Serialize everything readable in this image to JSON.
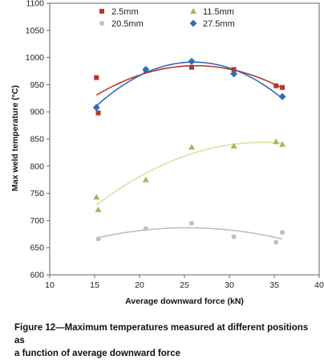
{
  "caption": {
    "line1": "Figure 12—Maximum temperatures measured at different positions as",
    "line2": "a function of average downward force"
  },
  "chart_data": {
    "type": "scatter",
    "title": "",
    "xlabel": "Average downward force (kN)",
    "ylabel": "Max weld temperature (°C)",
    "xlim": [
      10,
      40
    ],
    "ylim": [
      600,
      1100
    ],
    "xticks": [
      10,
      15,
      20,
      25,
      30,
      35,
      40
    ],
    "yticks": [
      600,
      650,
      700,
      750,
      800,
      850,
      900,
      950,
      1000,
      1050,
      1100
    ],
    "grid": false,
    "legend_position": "top",
    "trendlines": "quadratic",
    "series": [
      {
        "name": "2.5mm",
        "color": "#b03a2e",
        "marker": "square",
        "x": [
          15.2,
          15.4,
          20.7,
          25.8,
          30.5,
          35.2,
          35.9
        ],
        "y": [
          963,
          898,
          976,
          982,
          978,
          948,
          945
        ]
      },
      {
        "name": "11.5mm",
        "color": "#9bbb59",
        "marker": "triangle",
        "x": [
          15.2,
          15.4,
          20.7,
          25.8,
          30.5,
          35.2,
          35.9
        ],
        "y": [
          743,
          720,
          775,
          835,
          837,
          845,
          840
        ]
      },
      {
        "name": "20.5mm",
        "color": "#bfbfbf",
        "marker": "circle",
        "x": [
          15.4,
          20.7,
          25.8,
          30.5,
          35.2,
          35.9
        ],
        "y": [
          666,
          685,
          695,
          670,
          660,
          678
        ]
      },
      {
        "name": "27.5mm",
        "color": "#2e6eb5",
        "marker": "diamond",
        "x": [
          15.2,
          20.7,
          25.8,
          30.5,
          35.9
        ],
        "y": [
          908,
          978,
          993,
          970,
          928
        ]
      }
    ]
  }
}
